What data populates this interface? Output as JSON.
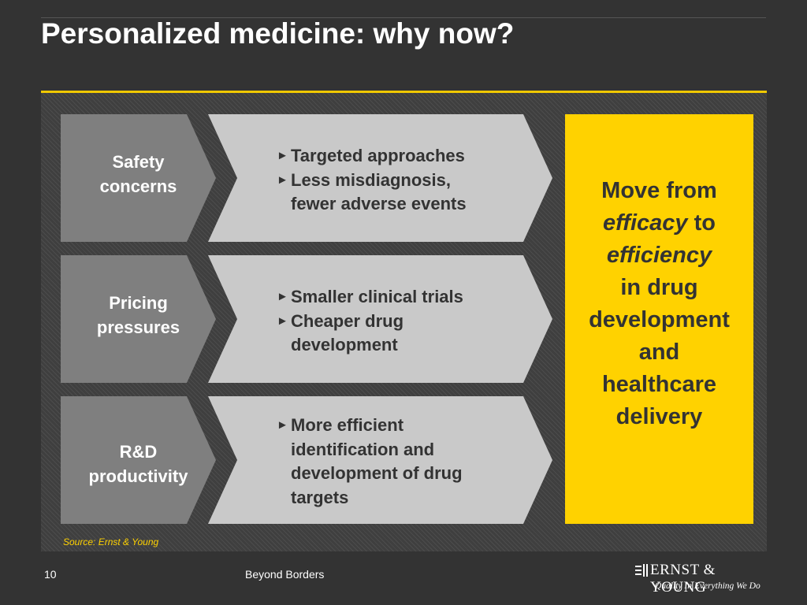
{
  "slide": {
    "title": "Personalized medicine: why now?",
    "page_number": "10",
    "footer_text": "Beyond Borders",
    "source": "Source: Ernst & Young"
  },
  "rows": [
    {
      "driver": [
        "Safety",
        "concerns"
      ],
      "bullets": [
        [
          "Targeted approaches"
        ],
        [
          "Less misdiagnosis,",
          "fewer adverse events"
        ]
      ]
    },
    {
      "driver": [
        "Pricing",
        "pressures"
      ],
      "bullets": [
        [
          "Smaller clinical trials"
        ],
        [
          "Cheaper drug",
          "development"
        ]
      ]
    },
    {
      "driver": [
        "R&D",
        "productivity"
      ],
      "bullets": [
        [
          "More efficient",
          "identification and",
          "development of drug",
          "targets"
        ]
      ]
    }
  ],
  "conclusion": {
    "line1": "Move from",
    "efficacy": "efficacy",
    "to": "to",
    "efficiency": "efficiency",
    "line4": "in drug",
    "line5": "development",
    "line6": "and",
    "line7": "healthcare",
    "line8": "delivery"
  },
  "logo": {
    "name": "ERNST & YOUNG",
    "tagline": "Quality In Everything We Do",
    "icon": "ernst-young-logo-mark"
  },
  "colors": {
    "background": "#333333",
    "accent_yellow": "#ffd200",
    "driver_gray": "#7f7f7f",
    "bullet_gray": "#c9c9c9"
  }
}
